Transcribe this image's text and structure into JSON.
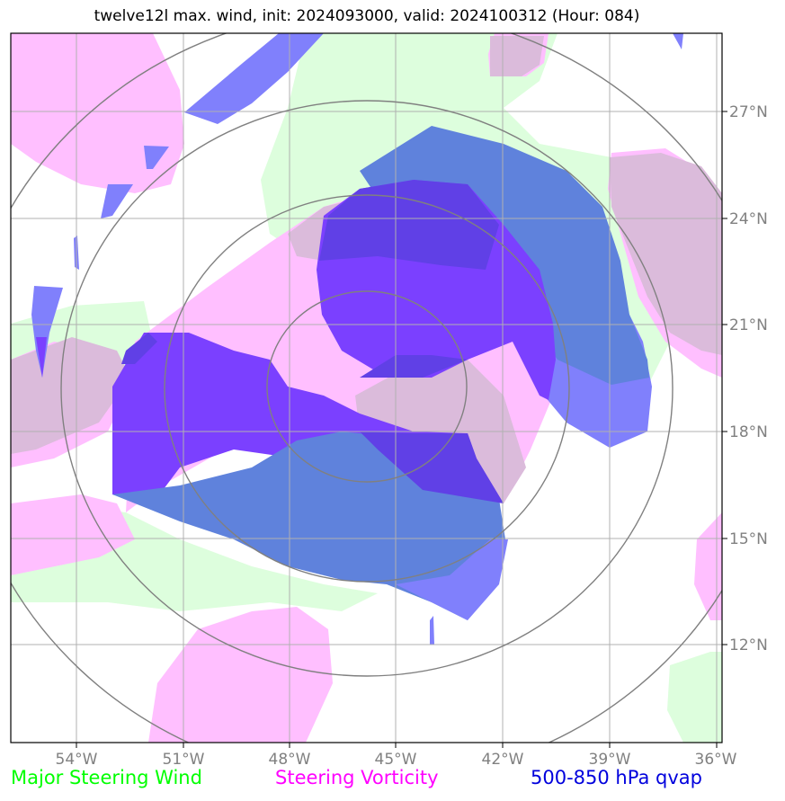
{
  "title": "twelve12l max. wind, init: 2024093000, valid: 2024100312 (Hour: 084)",
  "map": {
    "lon_ticks": [
      "54°W",
      "51°W",
      "48°W",
      "45°W",
      "42°W",
      "39°W",
      "36°W"
    ],
    "lat_ticks": [
      "27°N",
      "24°N",
      "21°N",
      "18°N",
      "15°N",
      "12°N"
    ]
  },
  "legend": {
    "wind": {
      "label": "Major Steering Wind",
      "color": "#00ff00"
    },
    "vorticity": {
      "label": "Steering Vorticity",
      "color": "#ff00ff"
    },
    "qvap": {
      "label": "500-850 hPa qvap",
      "color": "#0000dd"
    }
  },
  "colors": {
    "wind_fill": "#ddfedd",
    "vorticity_fill": "#ffbfff",
    "overlap_fill": "#dbbbdb",
    "qvap_light": "#8080fc",
    "qvap_mid": "#5f82dc",
    "qvap_dark": "#7b40ff",
    "qvap_deep": "#6040e6",
    "grid": "#b0b0b0",
    "rings": "#808080"
  }
}
